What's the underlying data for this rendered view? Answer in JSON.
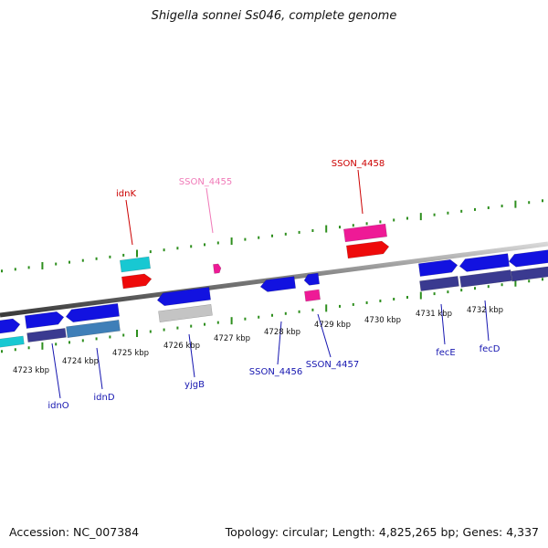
{
  "title": "Shigella sonnei Ss046, complete genome",
  "footer": {
    "accession": "Accession: NC_007384",
    "summary": "Topology: circular; Length: 4,825,265 bp; Genes: 4,337"
  },
  "colors": {
    "blue": "#1212e0",
    "cyan": "#18c8d2",
    "red": "#ee0a0a",
    "pink": "#ee1a96",
    "gray": "#c4c4c4",
    "navy": "#3a3a90",
    "steel": "#3f7fb8",
    "backbone": "#8a8a8a",
    "tick": "#2e8f1e",
    "label_blue": "#1515b0",
    "label_red": "#cc0000",
    "label_pink": "#f07ab8"
  },
  "scale_labels": [
    "4723 kbp",
    "4724 kbp",
    "4725 kbp",
    "4726 kbp",
    "4727 kbp",
    "4728 kbp",
    "4729 kbp",
    "4730 kbp",
    "4731 kbp",
    "4732 kbp"
  ],
  "gene_labels": [
    {
      "text": "idnK",
      "color": "label_red"
    },
    {
      "text": "SSON_4455",
      "color": "label_pink"
    },
    {
      "text": "SSON_4458",
      "color": "label_red"
    },
    {
      "text": "idnO",
      "color": "label_blue"
    },
    {
      "text": "idnD",
      "color": "label_blue"
    },
    {
      "text": "yjgB",
      "color": "label_blue"
    },
    {
      "text": "SSON_4456",
      "color": "label_blue"
    },
    {
      "text": "SSON_4457",
      "color": "label_blue"
    },
    {
      "text": "fecE",
      "color": "label_blue"
    },
    {
      "text": "fecD",
      "color": "label_blue"
    }
  ]
}
